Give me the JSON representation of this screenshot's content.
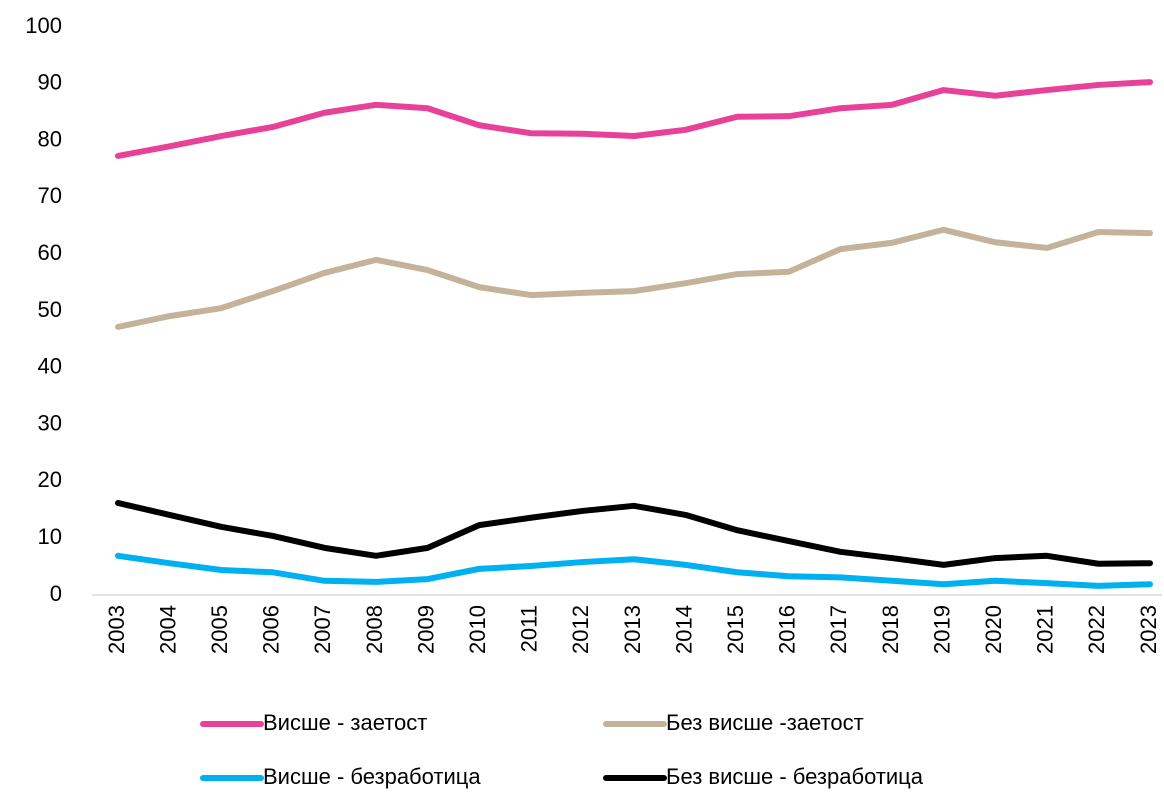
{
  "chart_data": {
    "type": "line",
    "x": [
      "2003",
      "2004",
      "2005",
      "2006",
      "2007",
      "2008",
      "2009",
      "2010",
      "2011",
      "2012",
      "2013",
      "2014",
      "2015",
      "2016",
      "2017",
      "2018",
      "2019",
      "2020",
      "2021",
      "2022",
      "2023"
    ],
    "ylim": [
      0,
      100
    ],
    "yticks": [
      0,
      10,
      20,
      30,
      40,
      50,
      60,
      70,
      80,
      90,
      100
    ],
    "grid": false,
    "series": [
      {
        "name": "Висше - заетост",
        "color": "#e8419a",
        "values": [
          77.3,
          79,
          80.8,
          82.4,
          84.9,
          86.3,
          85.7,
          82.7,
          81.3,
          81.2,
          80.8,
          81.9,
          84.2,
          84.3,
          85.7,
          86.3,
          88.9,
          87.9,
          88.9,
          89.8,
          90.3
        ]
      },
      {
        "name": "Без висше -заетост",
        "color": "#c4b39a",
        "values": [
          47.2,
          49.1,
          50.5,
          53.5,
          56.7,
          59,
          57.2,
          54.2,
          52.8,
          53.2,
          53.5,
          54.9,
          56.5,
          56.9,
          60.9,
          62,
          64.3,
          62.1,
          61.1,
          63.9,
          63.7
        ]
      },
      {
        "name": "Висше - безработица",
        "color": "#00b0f0",
        "values": [
          6.9,
          5.6,
          4.4,
          4.0,
          2.5,
          2.3,
          2.8,
          4.6,
          5.1,
          5.8,
          6.3,
          5.3,
          4.0,
          3.3,
          3.1,
          2.5,
          1.9,
          2.5,
          2.1,
          1.6,
          1.9
        ]
      },
      {
        "name": "Без висше - безработица",
        "color": "#000000",
        "values": [
          16.2,
          14.1,
          12,
          10.4,
          8.3,
          6.9,
          8.3,
          12.3,
          13.6,
          14.8,
          15.7,
          14.1,
          11.4,
          9.5,
          7.6,
          6.5,
          5.3,
          6.5,
          6.9,
          5.5,
          5.6
        ]
      }
    ]
  }
}
